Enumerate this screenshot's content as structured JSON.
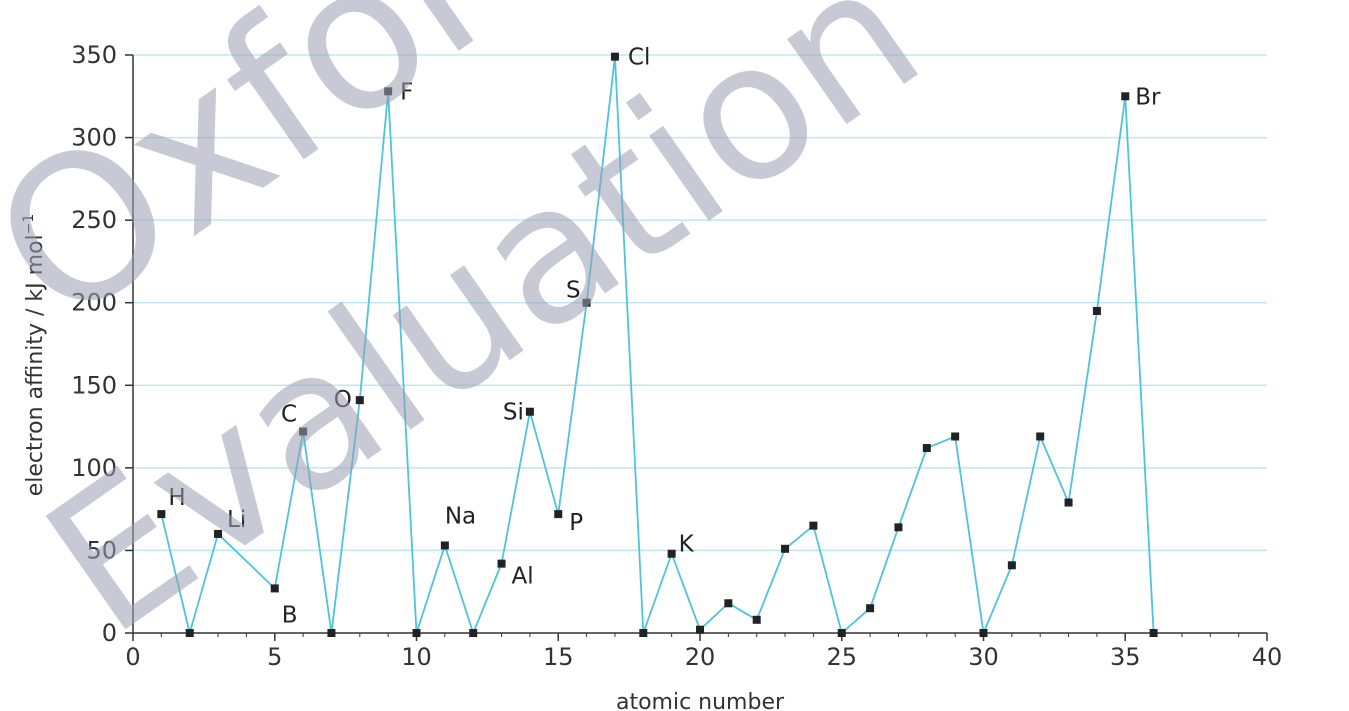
{
  "watermark": {
    "line1": "Oxford",
    "line2": "Evaluation"
  },
  "chart_data": {
    "type": "line",
    "xlabel": "atomic number",
    "ylabel": "electron affinity / kJ mol",
    "ylabel_superscript": "−1",
    "xlim": [
      0,
      40
    ],
    "ylim": [
      0,
      350
    ],
    "xticks": [
      0,
      5,
      10,
      15,
      20,
      25,
      30,
      35,
      40
    ],
    "yticks": [
      0,
      50,
      100,
      150,
      200,
      250,
      300,
      350
    ],
    "grid": "horizontal",
    "line_color": "#4ec3dc",
    "grid_color": "#bfe7f1",
    "marker_color": "#222222",
    "series": [
      {
        "x": [
          1,
          2,
          3,
          5,
          6,
          7,
          8,
          9,
          10,
          11,
          12,
          13,
          14,
          15,
          16,
          17,
          18,
          19,
          20,
          21,
          22,
          23,
          24,
          25,
          26,
          27,
          28,
          29,
          30,
          31,
          32,
          33,
          34,
          35,
          36
        ],
        "values": [
          72,
          0,
          60,
          27,
          122,
          0,
          141,
          328,
          0,
          53,
          0,
          42,
          134,
          72,
          200,
          349,
          0,
          48,
          2,
          18,
          8,
          51,
          65,
          0,
          15,
          64,
          112,
          119,
          0,
          41,
          119,
          79,
          195,
          325,
          0
        ]
      }
    ],
    "point_labels": [
      {
        "text": "H",
        "x": 1,
        "y": 72
      },
      {
        "text": "Li",
        "x": 3,
        "y": 60
      },
      {
        "text": "B",
        "x": 5,
        "y": 27
      },
      {
        "text": "C",
        "x": 6,
        "y": 122
      },
      {
        "text": "O",
        "x": 8,
        "y": 141
      },
      {
        "text": "F",
        "x": 9,
        "y": 328
      },
      {
        "text": "Na",
        "x": 11,
        "y": 53
      },
      {
        "text": "Al",
        "x": 13,
        "y": 42
      },
      {
        "text": "Si",
        "x": 14,
        "y": 134
      },
      {
        "text": "P",
        "x": 15,
        "y": 72
      },
      {
        "text": "S",
        "x": 16,
        "y": 200
      },
      {
        "text": "Cl",
        "x": 17,
        "y": 349
      },
      {
        "text": "K",
        "x": 19,
        "y": 48
      },
      {
        "text": "Br",
        "x": 35,
        "y": 325
      }
    ]
  }
}
